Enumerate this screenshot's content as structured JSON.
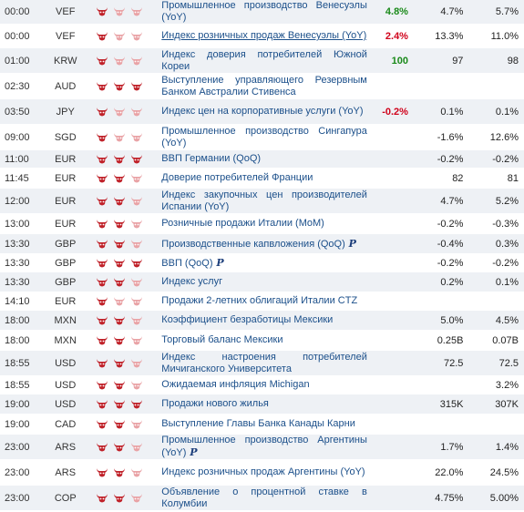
{
  "colors": {
    "bull_filled": "#c0222a",
    "bull_empty": "#e9a3a6",
    "actual_positive": "#1a8a1a",
    "actual_negative": "#d0021b",
    "event_link": "#1b4f8a"
  },
  "events": [
    {
      "time": "00:00",
      "currency": "VEF",
      "importance": 1,
      "event": "Промышленное производство Венесуэлы (YoY)",
      "prelim": false,
      "underline": false,
      "actual": "4.8%",
      "actual_tone": "positive",
      "forecast": "4.7%",
      "previous": "5.7%",
      "h": 26
    },
    {
      "time": "00:00",
      "currency": "VEF",
      "importance": 1,
      "event": "Индекс розничных продаж Венесуэлы (YoY)",
      "prelim": false,
      "underline": true,
      "actual": "2.4%",
      "actual_tone": "negative",
      "forecast": "13.3%",
      "previous": "11.0%",
      "h": 26
    },
    {
      "time": "01:00",
      "currency": "KRW",
      "importance": 1,
      "event": "Индекс доверия потребителей Южной Кореи",
      "prelim": false,
      "underline": false,
      "actual": "100",
      "actual_tone": "positive",
      "forecast": "97",
      "previous": "98",
      "h": 28
    },
    {
      "time": "02:30",
      "currency": "AUD",
      "importance": 3,
      "event": "Выступление управляющего Резервным Банком Австралии Стивенса",
      "prelim": false,
      "underline": false,
      "actual": "",
      "actual_tone": "",
      "forecast": "",
      "previous": "",
      "h": 28
    },
    {
      "time": "03:50",
      "currency": "JPY",
      "importance": 1,
      "event": "Индекс цен на корпоративные услуги (YoY)",
      "prelim": false,
      "underline": false,
      "actual": "-0.2%",
      "actual_tone": "negative",
      "forecast": "0.1%",
      "previous": "0.1%",
      "h": 28
    },
    {
      "time": "09:00",
      "currency": "SGD",
      "importance": 1,
      "event": "Промышленное производство Сингапура (YoY)",
      "prelim": false,
      "underline": false,
      "actual": "",
      "actual_tone": "",
      "forecast": "-1.6%",
      "previous": "12.6%",
      "h": 28
    },
    {
      "time": "11:00",
      "currency": "EUR",
      "importance": 3,
      "event": "ВВП Германии (QoQ)",
      "prelim": false,
      "underline": false,
      "actual": "",
      "actual_tone": "",
      "forecast": "-0.2%",
      "previous": "-0.2%",
      "h": 20
    },
    {
      "time": "11:45",
      "currency": "EUR",
      "importance": 2,
      "event": "Доверие потребителей Франции",
      "prelim": false,
      "underline": false,
      "actual": "",
      "actual_tone": "",
      "forecast": "82",
      "previous": "81",
      "h": 22
    },
    {
      "time": "12:00",
      "currency": "EUR",
      "importance": 2,
      "event": "Индекс закупочных цен производителей Испании (YoY)",
      "prelim": false,
      "underline": false,
      "actual": "",
      "actual_tone": "",
      "forecast": "4.7%",
      "previous": "5.2%",
      "h": 28
    },
    {
      "time": "13:00",
      "currency": "EUR",
      "importance": 2,
      "event": "Розничные продажи Италии (MoM)",
      "prelim": false,
      "underline": false,
      "actual": "",
      "actual_tone": "",
      "forecast": "-0.2%",
      "previous": "-0.3%",
      "h": 22
    },
    {
      "time": "13:30",
      "currency": "GBP",
      "importance": 2,
      "event": "Производственные капвложения (QoQ)",
      "prelim": true,
      "underline": false,
      "actual": "",
      "actual_tone": "",
      "forecast": "-0.4%",
      "previous": "0.3%",
      "h": 22
    },
    {
      "time": "13:30",
      "currency": "GBP",
      "importance": 3,
      "event": "ВВП (QoQ)",
      "prelim": true,
      "underline": false,
      "actual": "",
      "actual_tone": "",
      "forecast": "-0.2%",
      "previous": "-0.2%",
      "h": 20
    },
    {
      "time": "13:30",
      "currency": "GBP",
      "importance": 2,
      "event": "Индекс услуг",
      "prelim": false,
      "underline": false,
      "actual": "",
      "actual_tone": "",
      "forecast": "0.2%",
      "previous": "0.1%",
      "h": 22
    },
    {
      "time": "14:10",
      "currency": "EUR",
      "importance": 1,
      "event": "Продажи 2-летних облигаций Италии CTZ",
      "prelim": false,
      "underline": false,
      "actual": "",
      "actual_tone": "",
      "forecast": "",
      "previous": "",
      "h": 20
    },
    {
      "time": "18:00",
      "currency": "MXN",
      "importance": 2,
      "event": "Коэффициент безработицы Мексики",
      "prelim": false,
      "underline": false,
      "actual": "",
      "actual_tone": "",
      "forecast": "5.0%",
      "previous": "4.5%",
      "h": 22
    },
    {
      "time": "18:00",
      "currency": "MXN",
      "importance": 2,
      "event": "Торговый баланс Мексики",
      "prelim": false,
      "underline": false,
      "actual": "",
      "actual_tone": "",
      "forecast": "0.25B",
      "previous": "0.07B",
      "h": 22
    },
    {
      "time": "18:55",
      "currency": "USD",
      "importance": 2,
      "event": "Индекс настроения потребителей Мичиганского Университета",
      "prelim": false,
      "underline": false,
      "actual": "",
      "actual_tone": "",
      "forecast": "72.5",
      "previous": "72.5",
      "h": 28
    },
    {
      "time": "18:55",
      "currency": "USD",
      "importance": 2,
      "event": "Ожидаемая инфляция Michigan",
      "prelim": false,
      "underline": false,
      "actual": "",
      "actual_tone": "",
      "forecast": "",
      "previous": "3.2%",
      "h": 20
    },
    {
      "time": "19:00",
      "currency": "USD",
      "importance": 3,
      "event": "Продажи нового жилья",
      "prelim": false,
      "underline": false,
      "actual": "",
      "actual_tone": "",
      "forecast": "315K",
      "previous": "307K",
      "h": 22
    },
    {
      "time": "19:00",
      "currency": "CAD",
      "importance": 2,
      "event": "Выступление Главы Банка Канады Карни",
      "prelim": false,
      "underline": false,
      "actual": "",
      "actual_tone": "",
      "forecast": "",
      "previous": "",
      "h": 22
    },
    {
      "time": "23:00",
      "currency": "ARS",
      "importance": 2,
      "event": "Промышленное производство Аргентины (YoY)",
      "prelim": true,
      "underline": false,
      "actual": "",
      "actual_tone": "",
      "forecast": "1.7%",
      "previous": "1.4%",
      "h": 28
    },
    {
      "time": "23:00",
      "currency": "ARS",
      "importance": 2,
      "event": "Индекс розничных продаж Аргентины (YoY)",
      "prelim": false,
      "underline": false,
      "actual": "",
      "actual_tone": "",
      "forecast": "22.0%",
      "previous": "24.5%",
      "h": 28
    },
    {
      "time": "23:00",
      "currency": "COP",
      "importance": 2,
      "event": "Объявление о процентной ставке в Колумбии",
      "prelim": false,
      "underline": false,
      "actual": "",
      "actual_tone": "",
      "forecast": "4.75%",
      "previous": "5.00%",
      "h": 28
    }
  ]
}
